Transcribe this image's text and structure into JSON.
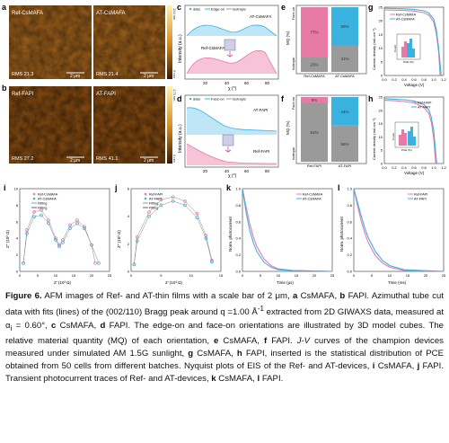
{
  "panels": {
    "a": {
      "letter": "a",
      "left_label": "Ref-CsMAFA",
      "right_label": "AT-CsMAFA",
      "left_rms": "RMS 21.3",
      "right_rms": "RMS 21.4",
      "scale": "2 μm",
      "bar_top": "154 nm",
      "bar_bottom": "0 nm"
    },
    "b": {
      "letter": "b",
      "left_label": "Ref-FAPI",
      "right_label": "AT-FAPI",
      "left_rms": "RMS 27.2",
      "right_rms": "RMS 41.1",
      "scale": "2 μm",
      "bar_top": "175 nm",
      "bar_bottom": "0 nm"
    },
    "c": {
      "letter": "c",
      "legend": [
        "data",
        "Edge-on",
        "Isotropic",
        "Face-on"
      ],
      "top_label": "AT-CsMAFA",
      "bottom_label": "Ref-CsMAFA",
      "ylabel": "Intensity (a.u.)",
      "xlabel": "χ (°)",
      "ticks": [
        "20",
        "40",
        "60",
        "80"
      ]
    },
    "d": {
      "letter": "d",
      "legend": [
        "data",
        "Face-on",
        "Isotropic",
        "Edge-on"
      ],
      "top_label": "AT-FAPI",
      "bottom_label": "Ref-FAPI",
      "ylabel": "Intensity (a.u.)",
      "xlabel": "χ (°)",
      "ticks": [
        "20",
        "40",
        "60",
        "80"
      ]
    },
    "e": {
      "letter": "e",
      "ylabel": "MQ (%)",
      "ticks": [
        "Face-on",
        "Isotropic"
      ],
      "categories": [
        "Ref-CsMAFA",
        "AT-CsMAFA"
      ]
    },
    "f": {
      "letter": "f",
      "ylabel": "MQ (%)",
      "ticks": [
        "Face-on",
        "Isotropic"
      ],
      "categories": [
        "Ref-FAPI",
        "AT-FAPI"
      ]
    },
    "g": {
      "letter": "g",
      "legend": [
        "Ref-CsMAFA",
        "AT-CsMAFA"
      ],
      "ylabel": "Current density (mA cm⁻²)",
      "xlabel": "Voltage (V)",
      "xticks": [
        "0.0",
        "0.2",
        "0.4",
        "0.6",
        "0.8",
        "1.0",
        "1.2"
      ],
      "yticks": [
        "0",
        "5",
        "10",
        "15",
        "20",
        "25"
      ],
      "inset_xlabel": "PCE (%)",
      "inset_ylabel": "Count"
    },
    "h": {
      "letter": "h",
      "legend": [
        "Ref-FAPI",
        "AT-FAPI"
      ],
      "ylabel": "Current density (mA cm⁻²)",
      "xlabel": "Voltage (V)",
      "xticks": [
        "0.0",
        "0.2",
        "0.4",
        "0.6",
        "0.8",
        "1.0",
        "1.2"
      ],
      "yticks": [
        "0",
        "5",
        "10",
        "15",
        "20",
        "25"
      ],
      "inset_xlabel": "PCE (%)",
      "inset_ylabel": "Count"
    },
    "i": {
      "letter": "i",
      "legend": [
        "Ref-CsMAFA",
        "AT-CsMAFA",
        "Fitting",
        "Fitting"
      ],
      "ylabel": "Z'' (10³ Ω)",
      "xlabel": "Z' (10³ Ω)",
      "xticks": [
        "0",
        "5",
        "10",
        "15",
        "20",
        "25"
      ],
      "yticks": [
        "0",
        "2",
        "4",
        "6",
        "8",
        "10"
      ]
    },
    "j": {
      "letter": "j",
      "legend": [
        "Ref-FAPI",
        "AT-FAPI",
        "Fitting",
        "Fitting"
      ],
      "ylabel": "Z'' (10³ Ω)",
      "xlabel": "Z' (10³ Ω)",
      "xticks": [
        "0",
        "5",
        "10",
        "15"
      ],
      "yticks": [
        "0",
        "2",
        "4",
        "6"
      ]
    },
    "k": {
      "letter": "k",
      "legend": [
        "Ref-CsMAFA",
        "AT-CsMAFA"
      ],
      "ylabel": "Norm. photocurrent",
      "xlabel": "Time (μs)",
      "xticks": [
        "0",
        "5",
        "10",
        "15",
        "20",
        "25"
      ],
      "yticks": [
        "0.0",
        "0.2",
        "0.4",
        "0.6",
        "0.8",
        "1.0"
      ]
    },
    "l": {
      "letter": "l",
      "legend": [
        "Ref-FAPI",
        "AT-FAPI"
      ],
      "ylabel": "Norm. photocurrent",
      "xlabel": "Time (ms)",
      "xticks": [
        "0",
        "5",
        "10",
        "15",
        "20",
        "25"
      ],
      "yticks": [
        "0.0",
        "0.2",
        "0.4",
        "0.6",
        "0.8",
        "1.0"
      ]
    }
  },
  "chart_data": [
    {
      "panel": "e",
      "type": "bar",
      "categories": [
        "Ref-CsMAFA",
        "AT-CsMAFA"
      ],
      "series": [
        {
          "name": "Face-on",
          "values": [
            77,
            59
          ]
        },
        {
          "name": "Isotropic",
          "values": [
            23,
            41
          ]
        }
      ],
      "value_labels": [
        [
          "77%",
          "23%"
        ],
        [
          "59%",
          "41%"
        ]
      ],
      "ylim": [
        0,
        100
      ]
    },
    {
      "panel": "f",
      "type": "bar",
      "categories": [
        "Ref-FAPI",
        "AT-FAPI"
      ],
      "series": [
        {
          "name": "Face-on",
          "values": [
            9,
            44
          ]
        },
        {
          "name": "Isotropic",
          "values": [
            91,
            56
          ]
        }
      ],
      "value_labels": [
        [
          "9%",
          "91%"
        ],
        [
          "44%",
          "56%"
        ]
      ],
      "ylim": [
        0,
        100
      ]
    },
    {
      "panel": "g",
      "type": "line",
      "xlim": [
        0,
        1.2
      ],
      "ylim": [
        0,
        25
      ],
      "series": [
        {
          "name": "Ref-CsMAFA",
          "x": [
            0,
            0.2,
            0.4,
            0.6,
            0.8,
            0.9,
            1.0,
            1.05,
            1.1,
            1.13
          ],
          "y": [
            24.0,
            23.9,
            23.8,
            23.6,
            23.0,
            22.1,
            19.5,
            15.5,
            8.5,
            0
          ]
        },
        {
          "name": "AT-CsMAFA",
          "x": [
            0,
            0.2,
            0.4,
            0.6,
            0.8,
            0.9,
            1.0,
            1.05,
            1.1,
            1.15
          ],
          "y": [
            24.6,
            24.5,
            24.4,
            24.2,
            23.7,
            22.9,
            20.6,
            17.0,
            10.0,
            0
          ]
        }
      ]
    },
    {
      "panel": "h",
      "type": "line",
      "xlim": [
        0,
        1.2
      ],
      "ylim": [
        0,
        25
      ],
      "series": [
        {
          "name": "Ref-FAPI",
          "x": [
            0,
            0.2,
            0.4,
            0.6,
            0.8,
            0.9,
            0.95,
            1.0,
            1.04
          ],
          "y": [
            23.8,
            23.6,
            23.3,
            22.8,
            21.2,
            18.8,
            15.5,
            9.5,
            0
          ]
        },
        {
          "name": "AT-FAPI",
          "x": [
            0,
            0.2,
            0.4,
            0.6,
            0.8,
            0.9,
            0.95,
            1.0,
            1.06
          ],
          "y": [
            24.4,
            24.2,
            24.0,
            23.5,
            22.2,
            20.2,
            17.4,
            12.4,
            0
          ]
        }
      ]
    },
    {
      "panel": "i",
      "type": "scatter",
      "xlim": [
        0,
        25
      ],
      "ylim": [
        0,
        10
      ],
      "series": [
        {
          "name": "Ref-CsMAFA",
          "x": [
            1,
            2,
            4,
            6,
            8,
            10,
            11,
            12,
            14,
            16,
            18,
            20,
            21
          ],
          "y": [
            1,
            5,
            7.2,
            7.4,
            6.2,
            4,
            3.2,
            3.8,
            5.6,
            6.2,
            5.4,
            3.2,
            1
          ]
        },
        {
          "name": "AT-CsMAFA",
          "x": [
            1,
            2,
            4,
            6,
            8,
            10,
            11,
            12,
            14,
            16,
            18,
            20,
            22
          ],
          "y": [
            1,
            4.6,
            6.6,
            6.8,
            5.8,
            3.8,
            3,
            3.5,
            5.2,
            5.8,
            5.2,
            3.2,
            1
          ]
        }
      ]
    },
    {
      "panel": "j",
      "type": "scatter",
      "xlim": [
        0,
        15
      ],
      "ylim": [
        0,
        6
      ],
      "series": [
        {
          "name": "Ref-FAPI",
          "x": [
            0.5,
            1,
            3,
            5,
            7,
            9,
            11,
            12.5,
            13.5
          ],
          "y": [
            0.5,
            2.5,
            4.3,
            5.2,
            5.4,
            5.1,
            4.2,
            2.6,
            0.8
          ]
        },
        {
          "name": "AT-FAPI",
          "x": [
            0.5,
            1,
            3,
            5,
            7,
            9,
            11,
            12.5,
            13.5
          ],
          "y": [
            0.5,
            2.2,
            4,
            4.8,
            5.1,
            4.8,
            3.9,
            2.4,
            0.7
          ]
        }
      ]
    },
    {
      "panel": "k",
      "type": "line",
      "xlim": [
        0,
        25
      ],
      "ylim": [
        0,
        1
      ],
      "series": [
        {
          "name": "Ref-CsMAFA",
          "x": [
            0,
            1,
            2,
            3,
            4,
            6,
            8,
            10,
            14,
            25
          ],
          "y": [
            1,
            0.78,
            0.58,
            0.42,
            0.3,
            0.15,
            0.07,
            0.03,
            0.01,
            0
          ]
        },
        {
          "name": "AT-CsMAFA",
          "x": [
            0,
            1,
            2,
            3,
            4,
            6,
            8,
            10,
            14,
            25
          ],
          "y": [
            1,
            0.72,
            0.5,
            0.35,
            0.24,
            0.11,
            0.05,
            0.02,
            0.01,
            0
          ]
        }
      ]
    },
    {
      "panel": "l",
      "type": "line",
      "xlim": [
        0,
        25
      ],
      "ylim": [
        0,
        1
      ],
      "series": [
        {
          "name": "Ref-FAPI",
          "x": [
            0,
            1,
            2,
            3,
            4,
            6,
            8,
            10,
            14,
            25
          ],
          "y": [
            1,
            0.8,
            0.62,
            0.47,
            0.35,
            0.19,
            0.1,
            0.05,
            0.01,
            0
          ]
        },
        {
          "name": "AT-FAPI",
          "x": [
            0,
            1,
            2,
            3,
            4,
            6,
            8,
            10,
            14,
            25
          ],
          "y": [
            1,
            0.84,
            0.68,
            0.53,
            0.41,
            0.24,
            0.13,
            0.07,
            0.02,
            0
          ]
        }
      ]
    }
  ],
  "caption": {
    "line1_bold": "Figure 6.",
    "line1_text": " AFM images of Ref- and AT-thin films with a scale bar of 2 μm, ",
    "a_letter": "a",
    "a_text": " CsMAFA, ",
    "b_letter": "b",
    "b_text": " FAPI. Azimuthal tube cut data with fits (lines) of the (002/110) Bragg peak around q =1.00 Å",
    "sup1": "-1",
    "part2": " extracted from 2D GIWAXS data, measured at α",
    "sub1": "i",
    "part3": " = 0.60°, ",
    "c_letter": "c",
    "c_text": " CsMAFA, ",
    "d_letter": "d",
    "d_text": " FAPI. The edge-on and face-on orientations are illustrated by 3D model cubes. The relative material quantity (MQ) of each orientation, ",
    "e_letter": "e",
    "e_text": " CsMAFA, ",
    "f_letter": "f",
    "f_text": " FAPI. ",
    "jv_italic": "J-V",
    "jv_text": " curves of the champion devices measured under simulated AM 1.5G sunlight, ",
    "g_letter": "g",
    "g_text": " CsMAFA, ",
    "h_letter": "h",
    "h_text": " FAPI, inserted is the statistical distribution of PCE obtained from 50 cells from different batches. Nyquist plots of EIS of the Ref- and AT-devices, ",
    "i_letter": "i",
    "i_text": " CsMAFA, ",
    "j_letter": "j",
    "j_text": " FAPI. Transient photocurrent traces of Ref- and AT-devices, ",
    "k_letter": "k",
    "k_text": " CsMAFA, ",
    "l_letter": "l",
    "l_text": " FAPI."
  },
  "colors": {
    "pink": "#e87aa8",
    "blue": "#3ab2e0",
    "gray": "#9a9a9a",
    "afm_dark": "#6b3a0a",
    "afm_light": "#e6b24a"
  }
}
